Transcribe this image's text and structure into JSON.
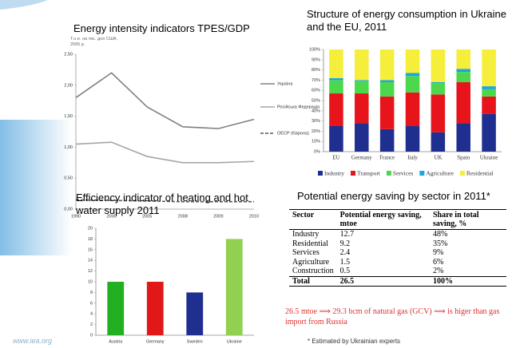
{
  "chart_data": [
    {
      "type": "line",
      "title": "Energy intensity indicators TPES/GDP",
      "y_label": "Т.н.е. на тис. дол США, 2005 р.",
      "categories": [
        "1990",
        "2000",
        "2005",
        "2008",
        "2009",
        "2010"
      ],
      "series": [
        {
          "name": "Україна",
          "color": "#808080",
          "values": [
            1.8,
            2.2,
            1.65,
            1.33,
            1.3,
            1.45
          ]
        },
        {
          "name": "Російська Федерація",
          "color": "#a6a6a6",
          "values": [
            1.05,
            1.08,
            0.85,
            0.75,
            0.75,
            0.77
          ]
        },
        {
          "name": "ОЕСР (Європа)",
          "color": "#595959",
          "dashed": true,
          "values": [
            0.15,
            0.14,
            0.13,
            0.12,
            0.12,
            0.12
          ]
        }
      ],
      "ylim": [
        0,
        2.5
      ],
      "yticks": [
        {
          "value": 0,
          "label": "0,00"
        },
        {
          "value": 0.5,
          "label": "0,50"
        },
        {
          "value": 1,
          "label": "1,00"
        },
        {
          "value": 1.5,
          "label": "1,50"
        },
        {
          "value": 2,
          "label": "2,00"
        },
        {
          "value": 2.5,
          "label": "2,50"
        }
      ],
      "grid": false
    },
    {
      "type": "bar",
      "stacked": true,
      "title": "Structure of energy consumption in Ukraine and the EU, 2011",
      "categories": [
        "EU",
        "Germany",
        "France",
        "Italy",
        "UK",
        "Spain",
        "Ukraine"
      ],
      "series": [
        {
          "name": "Industry",
          "color": "#1f2f8f",
          "values": [
            25,
            28,
            22,
            25,
            19,
            28,
            37
          ]
        },
        {
          "name": "Transport",
          "color": "#e8141c",
          "values": [
            32,
            29,
            32,
            33,
            37,
            40,
            17
          ]
        },
        {
          "name": "Services",
          "color": "#4cd84c",
          "values": [
            13,
            12,
            14,
            16,
            11,
            10,
            7
          ]
        },
        {
          "name": "Agriculture",
          "color": "#1aa6e0",
          "values": [
            2,
            1,
            2,
            3,
            1,
            3,
            3
          ]
        },
        {
          "name": "Residential",
          "color": "#f5ee3a",
          "values": [
            28,
            30,
            30,
            23,
            32,
            19,
            36
          ]
        }
      ],
      "ylim": [
        0,
        100
      ],
      "yticks": [
        {
          "value": 0,
          "label": "0%"
        },
        {
          "value": 10,
          "label": "10%"
        },
        {
          "value": 20,
          "label": "20%"
        },
        {
          "value": 30,
          "label": "30%"
        },
        {
          "value": 40,
          "label": "40%"
        },
        {
          "value": 50,
          "label": "50%"
        },
        {
          "value": 60,
          "label": "60%"
        },
        {
          "value": 70,
          "label": "70%"
        },
        {
          "value": 80,
          "label": "80%"
        },
        {
          "value": 90,
          "label": "90%"
        },
        {
          "value": 100,
          "label": "100%"
        }
      ],
      "grid": false
    },
    {
      "type": "bar",
      "title": "Efficiency indicator of heating and hot water supply 2011",
      "categories": [
        "Austria",
        "Germany",
        "Sweden",
        "Ukraine"
      ],
      "values": [
        10,
        10,
        8,
        18
      ],
      "colors": [
        "#22b022",
        "#e01818",
        "#1f2f8f",
        "#92d050"
      ],
      "ylim": [
        0,
        20
      ],
      "yticks": [
        0,
        2,
        4,
        6,
        8,
        10,
        12,
        14,
        16,
        18,
        20
      ],
      "grid": false
    }
  ],
  "table": {
    "title": "Potential energy saving by sector in 2011*",
    "header": [
      "Sector",
      "Potential energy saving, mtoe",
      "Share in total saving, %"
    ],
    "rows": [
      [
        "Industry",
        "12.7",
        "48%"
      ],
      [
        "Residential",
        "9.2",
        "35%"
      ],
      [
        "Services",
        "2.4",
        "9%"
      ],
      [
        "Agriculture",
        "1.5",
        "6%"
      ],
      [
        "Construction",
        "0.5",
        "2%"
      ]
    ],
    "total": [
      "Total",
      "26.5",
      "100%"
    ]
  },
  "note": "26.5 mtoe ⟹ 29.3 bcm of natural gas (GCV) ⟹ is higer than gas import from Russia",
  "footnote": "* Estimated by Ukrainian experts",
  "footer": "www.iea.org"
}
